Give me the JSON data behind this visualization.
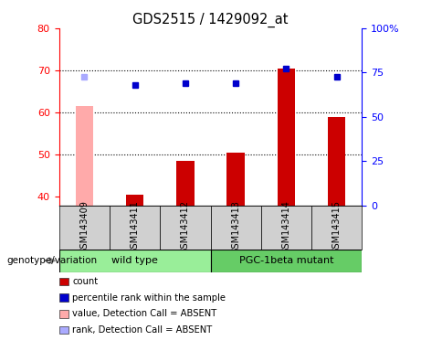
{
  "title": "GDS2515 / 1429092_at",
  "samples": [
    "GSM143409",
    "GSM143411",
    "GSM143412",
    "GSM143413",
    "GSM143414",
    "GSM143415"
  ],
  "bar_values": [
    61.5,
    40.5,
    48.5,
    50.5,
    70.5,
    59.0
  ],
  "bar_colors": [
    "#ffaaaa",
    "#cc0000",
    "#cc0000",
    "#cc0000",
    "#cc0000",
    "#cc0000"
  ],
  "dot_values": [
    68.5,
    66.5,
    67.0,
    67.0,
    70.5,
    68.5
  ],
  "dot_colors": [
    "#aaaaff",
    "#0000cc",
    "#0000cc",
    "#0000cc",
    "#0000cc",
    "#0000cc"
  ],
  "ylim_left": [
    38,
    80
  ],
  "ylim_right": [
    0,
    100
  ],
  "yticks_left": [
    40,
    50,
    60,
    70,
    80
  ],
  "yticks_right": [
    0,
    25,
    50,
    75,
    100
  ],
  "ytick_labels_right": [
    "0",
    "25",
    "50",
    "75",
    "100%"
  ],
  "hlines": [
    50,
    60,
    70
  ],
  "wild_type_label": "wild type",
  "pgc_mutant_label": "PGC-1beta mutant",
  "genotype_label": "genotype/variation",
  "legend_labels": [
    "count",
    "percentile rank within the sample",
    "value, Detection Call = ABSENT",
    "rank, Detection Call = ABSENT"
  ],
  "legend_colors": [
    "#cc0000",
    "#0000cc",
    "#ffaaaa",
    "#aaaaff"
  ],
  "gray_bar_color": "#d0d0d0",
  "green_wt_color": "#99ee99",
  "green_pgc_color": "#66cc66"
}
